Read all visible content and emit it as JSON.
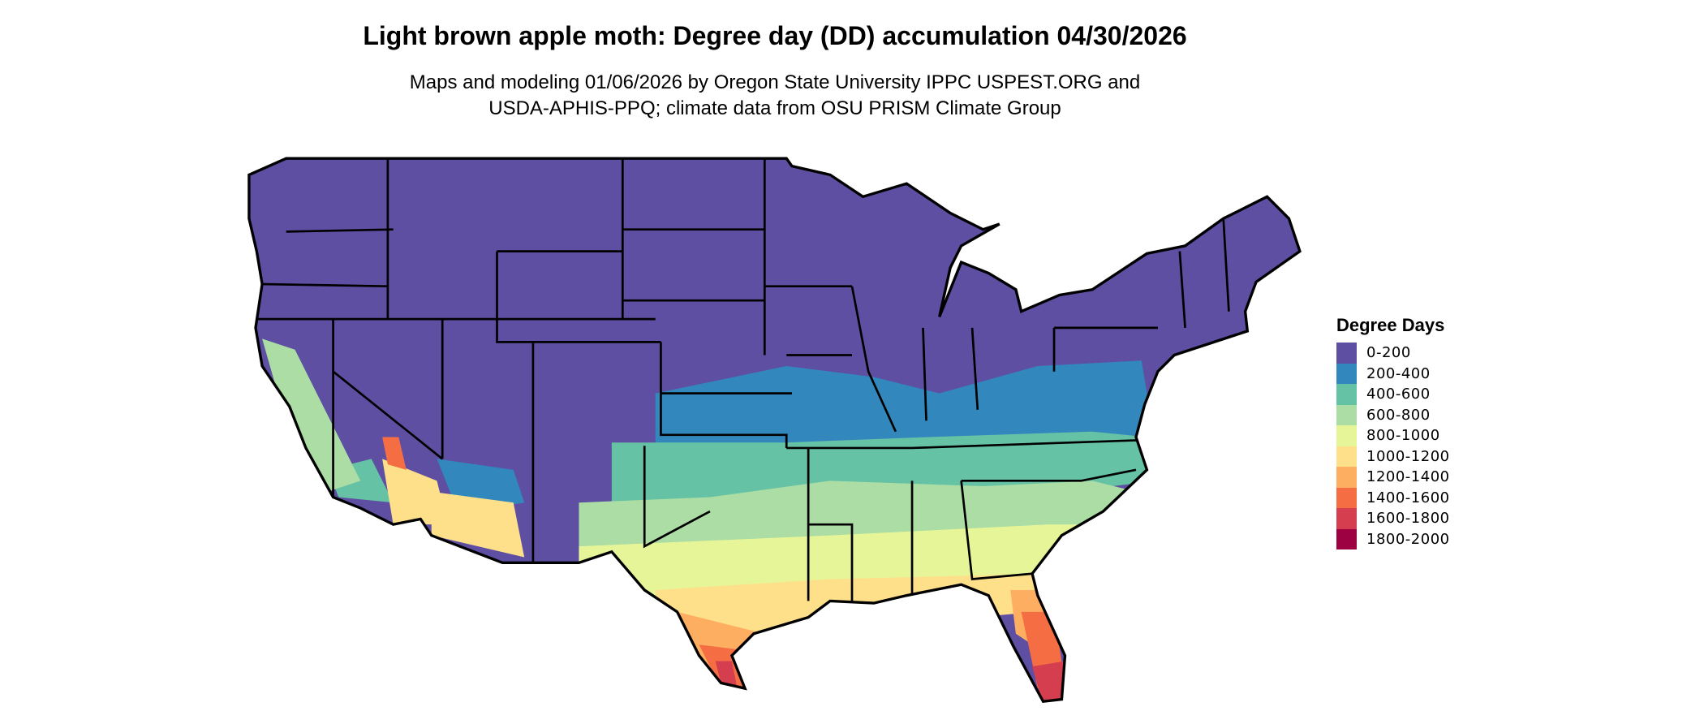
{
  "chart_data": {
    "type": "choropleth-map",
    "title": "Light brown apple moth: Degree day (DD) accumulation 04/30/2026",
    "subtitle_lines": [
      "Maps and modeling 01/06/2026 by Oregon State University IPPC USPEST.ORG and",
      "USDA-APHIS-PPQ; climate data from OSU PRISM Climate Group"
    ],
    "region": "Contiguous United States",
    "legend": {
      "title": "Degree Days",
      "placement": "right",
      "classes": [
        {
          "label": "0-200",
          "color": "#5e4fa2"
        },
        {
          "label": "200-400",
          "color": "#3288bd"
        },
        {
          "label": "400-600",
          "color": "#66c2a5"
        },
        {
          "label": "600-800",
          "color": "#abdda4"
        },
        {
          "label": "800-1000",
          "color": "#e6f598"
        },
        {
          "label": "1000-1200",
          "color": "#fee08b"
        },
        {
          "label": "1200-1400",
          "color": "#fdae61"
        },
        {
          "label": "1400-1600",
          "color": "#f46d43"
        },
        {
          "label": "1600-1800",
          "color": "#d53e4f"
        },
        {
          "label": "1800-2000",
          "color": "#9e0142"
        }
      ]
    }
  }
}
